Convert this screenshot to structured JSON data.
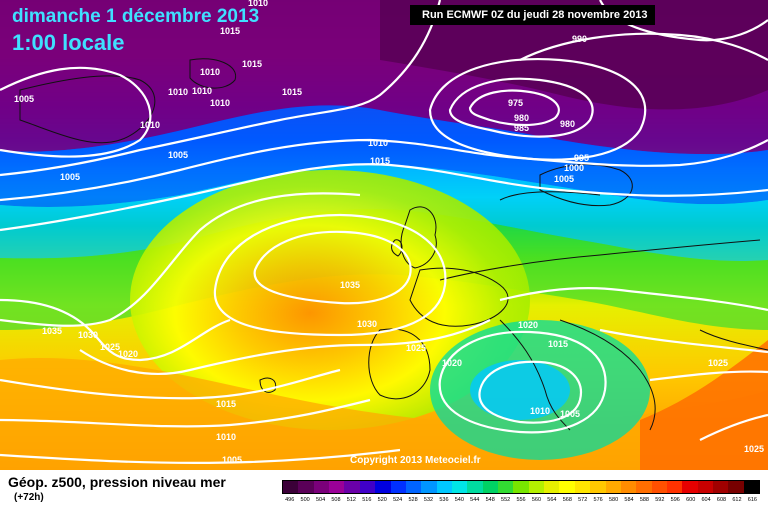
{
  "header": {
    "date": "dimanche 1 décembre 2013",
    "time": "1:00 locale",
    "run": "Run ECMWF 0Z du jeudi 28 novembre 2013"
  },
  "copyright": "Copyright 2013 Meteociel.fr",
  "legend": {
    "title": "Géop. z500, pression niveau mer",
    "subtitle": "(+72h)",
    "scale": [
      {
        "value": "496",
        "color": "#3b0038"
      },
      {
        "value": "500",
        "color": "#5a0058"
      },
      {
        "value": "504",
        "color": "#7a007a"
      },
      {
        "value": "508",
        "color": "#9a0098"
      },
      {
        "value": "512",
        "color": "#6a00a8"
      },
      {
        "value": "516",
        "color": "#4000c8"
      },
      {
        "value": "520",
        "color": "#0000e0"
      },
      {
        "value": "524",
        "color": "#0030ff"
      },
      {
        "value": "528",
        "color": "#0064ff"
      },
      {
        "value": "532",
        "color": "#0096ff"
      },
      {
        "value": "536",
        "color": "#00c8ff"
      },
      {
        "value": "540",
        "color": "#00e6e6"
      },
      {
        "value": "544",
        "color": "#00dca0"
      },
      {
        "value": "548",
        "color": "#00d264"
      },
      {
        "value": "552",
        "color": "#32dc32"
      },
      {
        "value": "556",
        "color": "#78e600"
      },
      {
        "value": "560",
        "color": "#b4f000"
      },
      {
        "value": "564",
        "color": "#e6f000"
      },
      {
        "value": "568",
        "color": "#ffff00"
      },
      {
        "value": "572",
        "color": "#ffe600"
      },
      {
        "value": "576",
        "color": "#ffc800"
      },
      {
        "value": "580",
        "color": "#ffaa00"
      },
      {
        "value": "584",
        "color": "#ff8c00"
      },
      {
        "value": "588",
        "color": "#ff6e00"
      },
      {
        "value": "592",
        "color": "#ff5000"
      },
      {
        "value": "596",
        "color": "#ff3200"
      },
      {
        "value": "600",
        "color": "#e60000"
      },
      {
        "value": "604",
        "color": "#c80000"
      },
      {
        "value": "608",
        "color": "#a00000"
      },
      {
        "value": "612",
        "color": "#780000"
      },
      {
        "value": "616",
        "color": "#000000"
      }
    ]
  },
  "isobar_labels": [
    "1010",
    "1015",
    "1005",
    "1010",
    "1010",
    "1010",
    "1010",
    "1015",
    "1010",
    "1015",
    "1005",
    "1005",
    "1010",
    "1015",
    "990",
    "975",
    "980",
    "985",
    "980",
    "995",
    "1000",
    "1005",
    "1035",
    "1030",
    "1035",
    "1030",
    "1025",
    "1020",
    "1025",
    "1020",
    "1020",
    "1015",
    "1015",
    "1010",
    "1005",
    "1010",
    "1005",
    "1025",
    "1025"
  ]
}
